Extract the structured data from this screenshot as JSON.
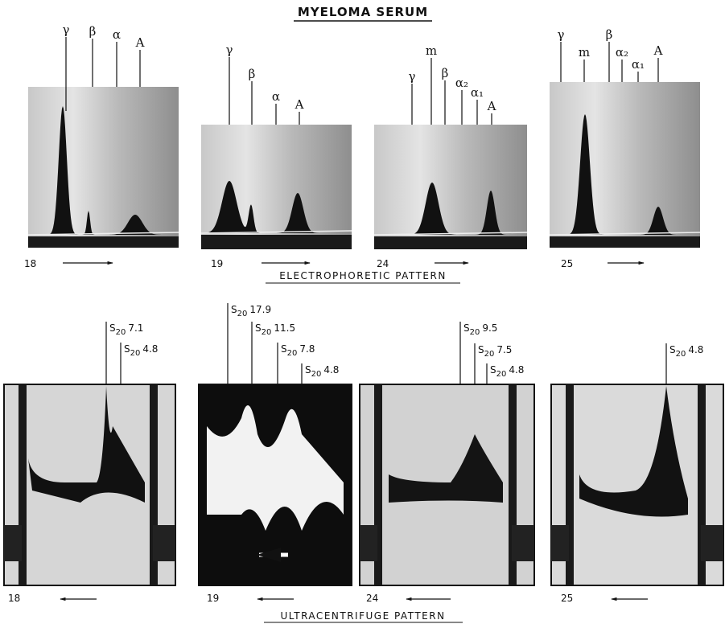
{
  "title": "MYELOMA SERUM",
  "electrophoretic": {
    "caption": "ELECTROPHORETIC PATTERN",
    "panels": [
      {
        "number": "18",
        "peaks": [
          "γ",
          "β",
          "α",
          "A"
        ]
      },
      {
        "number": "19",
        "peaks": [
          "γ",
          "β",
          "α",
          "A"
        ]
      },
      {
        "number": "24",
        "peaks": [
          "γ",
          "m",
          "β",
          "α₂",
          "α₁",
          "A"
        ]
      },
      {
        "number": "25",
        "peaks": [
          "γ",
          "m",
          "β",
          "α₂",
          "α₁",
          "A"
        ]
      }
    ]
  },
  "ultracentrifuge": {
    "caption": "ULTRACENTRIFUGE PATTERN",
    "panels": [
      {
        "number": "18",
        "peaks": [
          {
            "symbol": "S",
            "subscript": "20",
            "value": "7.1"
          },
          {
            "symbol": "S",
            "subscript": "20",
            "value": "4.8"
          }
        ]
      },
      {
        "number": "19",
        "peaks": [
          {
            "symbol": "S",
            "subscript": "20",
            "value": "17.9"
          },
          {
            "symbol": "S",
            "subscript": "20",
            "value": "11.5"
          },
          {
            "symbol": "S",
            "subscript": "20",
            "value": "7.8"
          },
          {
            "symbol": "S",
            "subscript": "20",
            "value": "4.8"
          }
        ]
      },
      {
        "number": "24",
        "peaks": [
          {
            "symbol": "S",
            "subscript": "20",
            "value": "9.5"
          },
          {
            "symbol": "S",
            "subscript": "20",
            "value": "7.5"
          },
          {
            "symbol": "S",
            "subscript": "20",
            "value": "4.8"
          }
        ]
      },
      {
        "number": "25",
        "peaks": [
          {
            "symbol": "S",
            "subscript": "20",
            "value": "4.8"
          }
        ]
      }
    ]
  }
}
